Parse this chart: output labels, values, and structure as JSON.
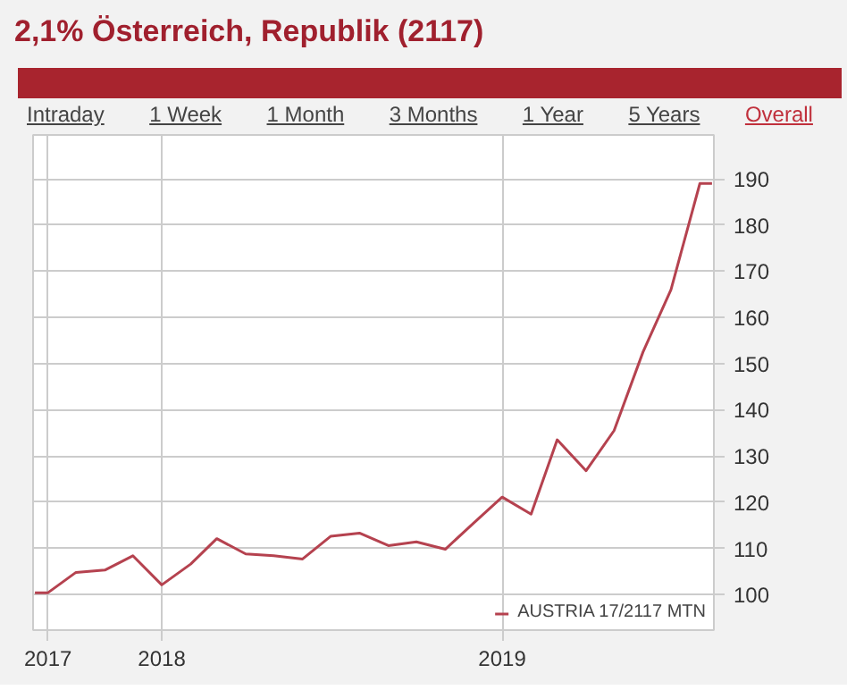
{
  "chart_data": {
    "type": "line",
    "title": "2,1% Österreich, Republik (2117)",
    "annotations": [
      "Intraday",
      "1 Week",
      "1 Month",
      "3 Months",
      "1 Year",
      "5 Years",
      "Overall"
    ],
    "x": [
      "2017-08-18",
      "2017-09-01",
      "2017-10-01",
      "2017-11-01",
      "2017-12-01",
      "2018-01-01",
      "2018-02-01",
      "2018-03-01",
      "2018-04-01",
      "2018-05-01",
      "2018-06-01",
      "2018-07-01",
      "2018-08-01",
      "2018-09-01",
      "2018-10-01",
      "2018-11-01",
      "2018-12-01",
      "2019-01-01",
      "2019-02-01",
      "2019-03-01",
      "2019-04-01",
      "2019-05-01",
      "2019-06-01",
      "2019-07-01",
      "2019-08-01",
      "2019-08-14"
    ],
    "series": [
      {
        "name": "AUSTRIA 17/2117 MTN",
        "color": "#b5424f",
        "values": [
          100.4,
          100.4,
          104.8,
          105.3,
          108.4,
          102.1,
          106.6,
          112.1,
          108.8,
          108.4,
          107.7,
          112.6,
          113.3,
          110.6,
          111.4,
          109.8,
          115.4,
          121.1,
          117.4,
          133.5,
          126.8,
          135.5,
          152.5,
          166.0,
          189.0,
          189.0
        ]
      }
    ],
    "xlim": [
      "2017-08-16",
      "2019-08-16"
    ],
    "xticks": [
      {
        "value": "2017-09-01",
        "label": "2017"
      },
      {
        "value": "2018-01-01",
        "label": "2018"
      },
      {
        "value": "2019-01-01",
        "label": "2019"
      }
    ],
    "ylim": [
      92.3,
      199.5
    ],
    "yticks": [
      100,
      110,
      120,
      130,
      140,
      150,
      160,
      170,
      180,
      190
    ],
    "grid": true,
    "legend": "bottom right",
    "marker": "none",
    "line_style": "solid"
  }
}
